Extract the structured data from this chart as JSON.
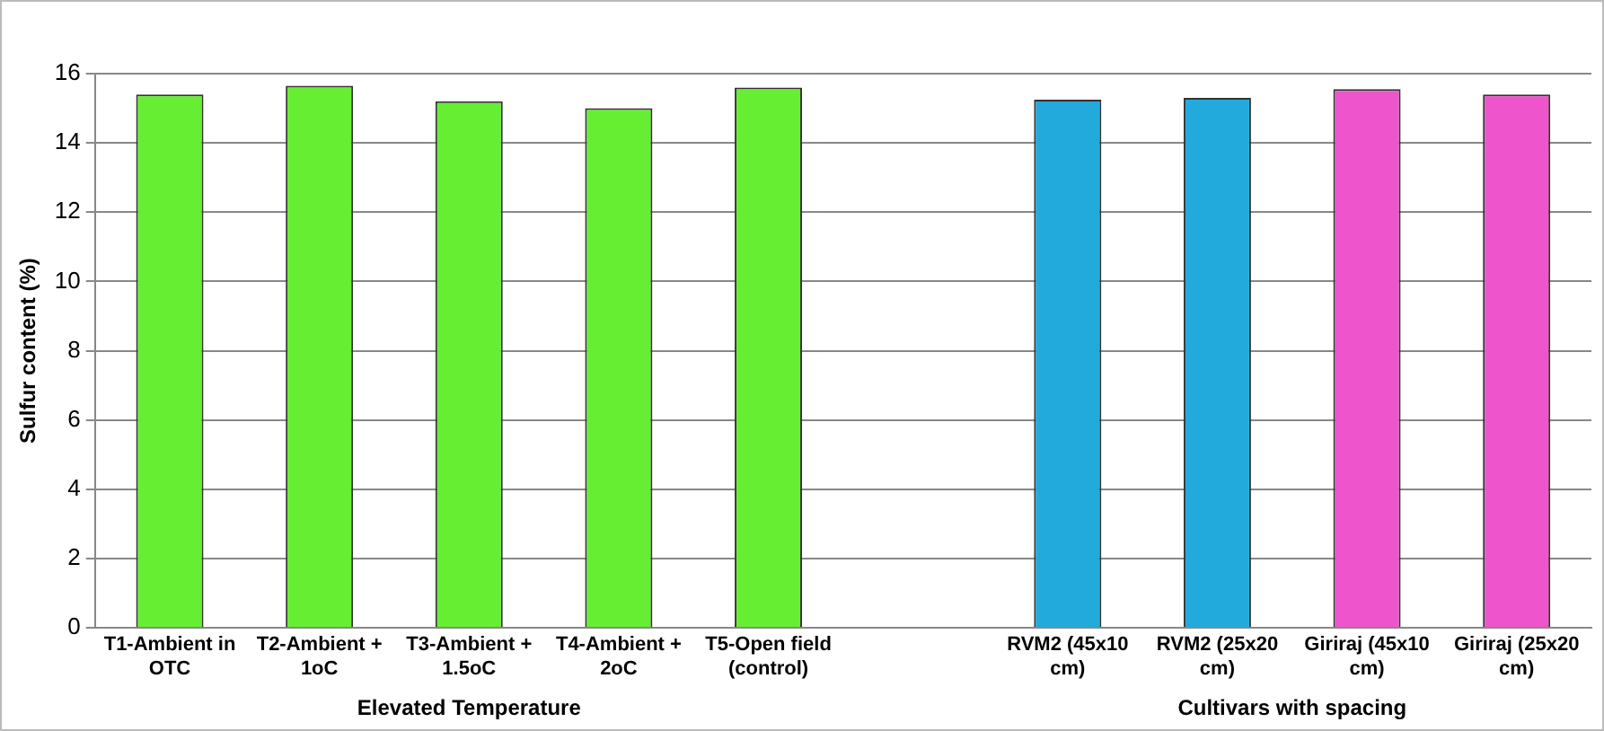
{
  "chart_data": {
    "type": "bar",
    "ylabel": "Sulfur content (%)",
    "categories": [
      "T1-Ambient in OTC",
      "T2-Ambient + 1oC",
      "T3-Ambient + 1.5oC",
      "T4-Ambient + 2oC",
      "T5-Open field (control)",
      null,
      "RVM2 (45x10 cm)",
      "RVM2 (25x20 cm)",
      "Giriraj (45x10 cm)",
      "Giriraj (25x20 cm)"
    ],
    "values": [
      15.4,
      15.65,
      15.2,
      15.0,
      15.6,
      null,
      15.25,
      15.3,
      15.55,
      15.4
    ],
    "colors": [
      "#66ee33",
      "#66ee33",
      "#66ee33",
      "#66ee33",
      "#66ee33",
      "#66ee33",
      "#22aadd",
      "#22aadd",
      "#ee55cc",
      "#ee55cc"
    ],
    "ylim": [
      0,
      16
    ],
    "yticks": [
      0,
      2,
      4,
      6,
      8,
      10,
      12,
      14,
      16
    ],
    "grid": "y",
    "legend": false,
    "annotations": [
      "Elevated Temperature",
      "Cultivars with spacing"
    ]
  }
}
